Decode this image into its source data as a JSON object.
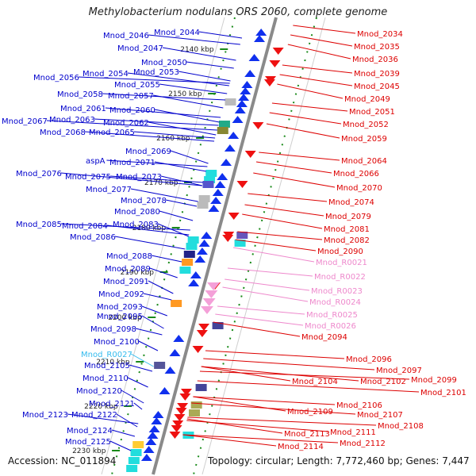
{
  "title": "Methylobacterium nodulans ORS 2060, complete genome",
  "footer": {
    "accession": "Accession: NC_011894",
    "topology": "Topology: circular; Length: 7,772,460 bp; Genes: 7,447"
  },
  "colors": {
    "left_label": "#0000cc",
    "right_label": "#dd0000",
    "rrna_left": "#33bbee",
    "rrna_right": "#ee88cc",
    "kbp_tick": "#1a8a1a",
    "backbone": "#8a8a8a"
  },
  "scale_marks": [
    "2140 kbp",
    "2150 kbp",
    "2160 kbp",
    "2170 kbp",
    "2180 kbp",
    "2190 kbp",
    "2200 kbp",
    "2210 kbp",
    "2220 kbp",
    "2230 kbp"
  ],
  "left_labels": [
    "Mnod_2044",
    "Mnod_2046",
    "Mnod_2047",
    "Mnod_2050",
    "Mnod_2053",
    "Mnod_2054",
    "Mnod_2056",
    "Mnod_2055",
    "Mnod_2057",
    "Mnod_2058",
    "Mnod_2061",
    "Mnod_2060",
    "Mnod_2063",
    "Mnod_2067",
    "Mnod_2062",
    "Mnod_2065",
    "Mnod_2068",
    "Mnod_2069",
    "aspA",
    "Mnod_2071",
    "Mnod_2076",
    "Mnod_2075",
    "Mnod_2073",
    "Mnod_2077",
    "Mnod_2078",
    "Mnod_2080",
    "Mnod_2083",
    "Mnod_2085",
    "Mnod_2084",
    "Mnod_2086",
    "Mnod_2088",
    "Mnod_2089",
    "Mnod_2091",
    "Mnod_2092",
    "Mnod_2093",
    "Mnod_2095",
    "Mnod_2098",
    "Mnod_2100",
    "Mnod_R0027",
    "Mnod_2105",
    "Mnod_2110",
    "Mnod_2120",
    "Mnod_2121",
    "Mnod_2123",
    "Mnod_2122",
    "Mnod_2124",
    "Mnod_2125"
  ],
  "right_labels": [
    "Mnod_2034",
    "Mnod_2035",
    "Mnod_2036",
    "Mnod_2039",
    "Mnod_2045",
    "Mnod_2049",
    "Mnod_2051",
    "Mnod_2052",
    "Mnod_2059",
    "Mnod_2064",
    "Mnod_2066",
    "Mnod_2070",
    "Mnod_2074",
    "Mnod_2079",
    "Mnod_2081",
    "Mnod_2082",
    "Mnod_2090",
    "Mnod_R0021",
    "Mnod_R0022",
    "Mnod_R0023",
    "Mnod_R0024",
    "Mnod_R0025",
    "Mnod_R0026",
    "Mnod_2094",
    "Mnod_2096",
    "Mnod_2097",
    "Mnod_2102",
    "Mnod_2099",
    "Mnod_2101",
    "Mnod_2104",
    "Mnod_2106",
    "Mnod_2107",
    "Mnod_2109",
    "Mnod_2108",
    "Mnod_2111",
    "Mnod_2113",
    "Mnod_2112",
    "Mnod_2114"
  ]
}
